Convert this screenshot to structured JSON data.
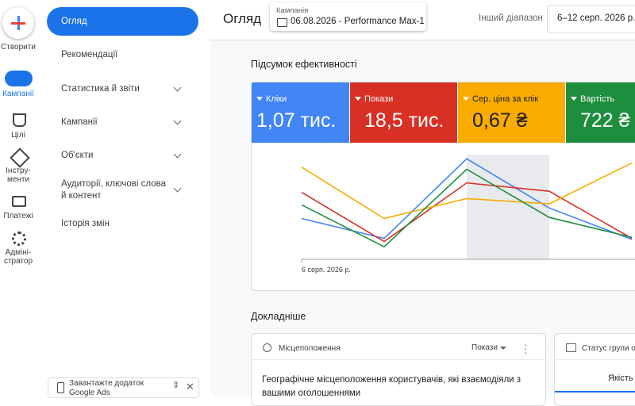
{
  "rail": {
    "create": "Створити",
    "items": [
      "Кампанії",
      "Цілі",
      "Інстру-\nменти",
      "Платежі",
      "Адміні-\nстратор"
    ]
  },
  "nav": {
    "items": [
      "Огляд",
      "Рекомендації",
      "Статистика й звіти",
      "Кампанії",
      "Об'єкти",
      "Аудиторії, ключові слова й контент",
      "Історія змін"
    ],
    "app_banner": "Завантажте додаток Google Ads"
  },
  "header": {
    "title": "Огляд",
    "campaign_label": "Кампанія",
    "campaign": "06.08.2026 - Performance Max-1",
    "range_label": "Інший діапазон",
    "range": "6–12 серп. 2026 р."
  },
  "summary": {
    "title": "Підсумок ефективності",
    "metrics": [
      {
        "name": "Кліки",
        "value": "1,07 тис."
      },
      {
        "name": "Покази",
        "value": "18,5 тис."
      },
      {
        "name": "Сер. ціна за клік",
        "value": "0,67 ₴"
      },
      {
        "name": "Вартість",
        "value": "722 ₴"
      }
    ]
  },
  "chart_data": {
    "type": "line",
    "x_label": "6 серп. 2026 р.",
    "ylim": [
      0,
      100
    ],
    "series": [
      {
        "name": "Кліки",
        "color": "#4285f4",
        "values": [
          39,
          20,
          96,
          49,
          19
        ]
      },
      {
        "name": "Покази",
        "color": "#d93025",
        "values": [
          64,
          17,
          73,
          65,
          20
        ]
      },
      {
        "name": "Сер. ціна за клік",
        "color": "#f9ab00",
        "values": [
          88,
          39,
          58,
          53,
          92
        ]
      },
      {
        "name": "Вартість",
        "color": "#1e8e3e",
        "values": [
          52,
          12,
          86,
          40,
          21
        ]
      }
    ]
  },
  "details": {
    "title": "Докладніше",
    "card1": {
      "title": "Місцеположення",
      "metric": "Покази",
      "text": "Географічне місцеположення користувачів, які взаємодіяли з вашими оголошеннями"
    },
    "card2": {
      "title": "Статус групи об",
      "tab": "Якість"
    }
  }
}
